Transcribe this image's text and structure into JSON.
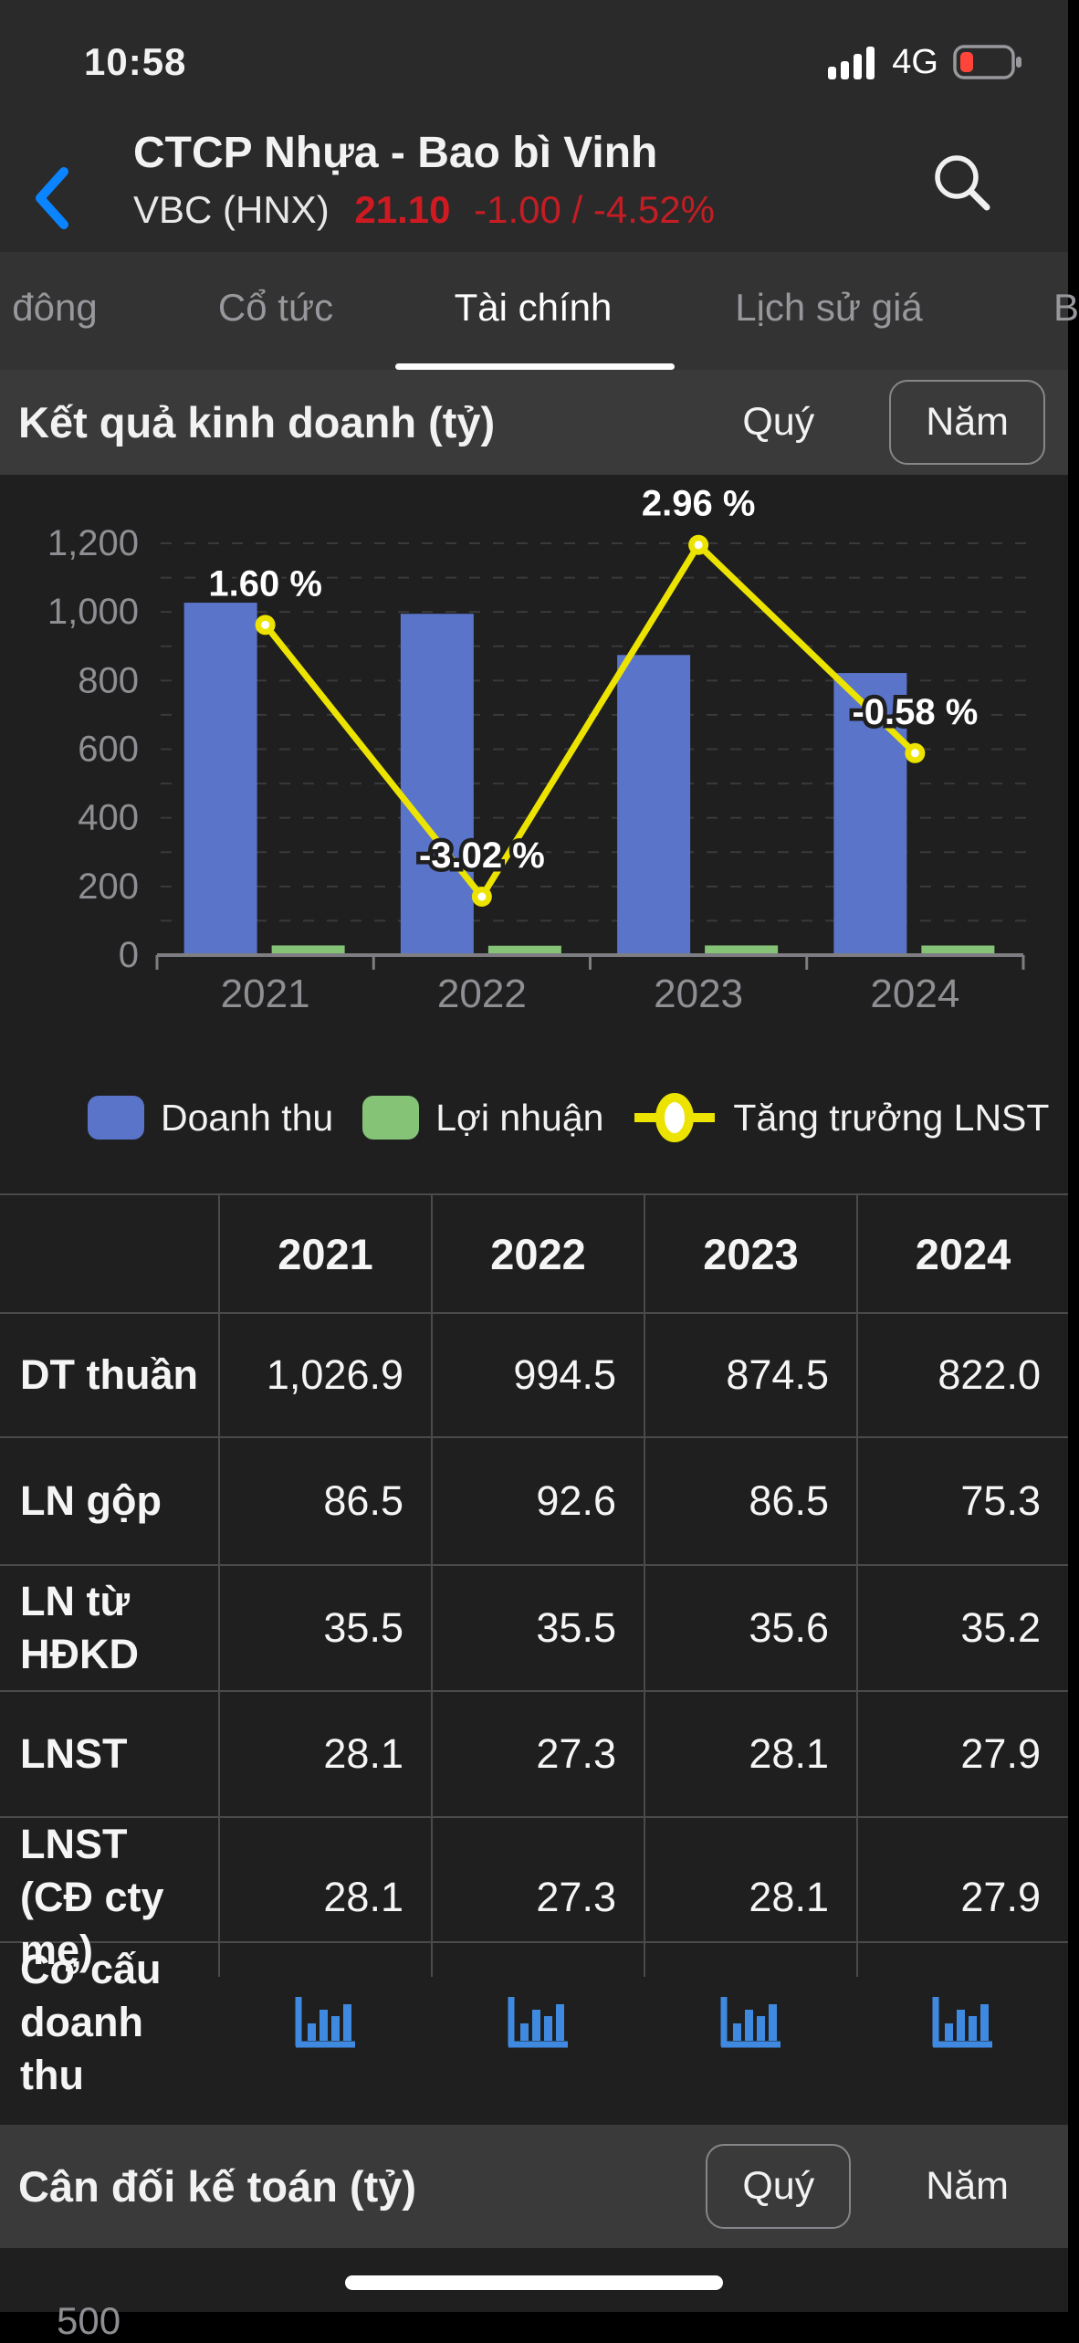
{
  "status_bar": {
    "time": "10:58",
    "network": "4G",
    "battery_level_color": "#ff453a"
  },
  "header": {
    "title": "CTCP Nhựa - Bao bì Vinh",
    "ticker": "VBC (HNX)",
    "price": "21.10",
    "change": "-1.00 / -4.52%",
    "price_color": "#d01a22"
  },
  "tab_bar": {
    "tabs": [
      {
        "label": "đông",
        "active": false
      },
      {
        "label": "Cổ tức",
        "active": false
      },
      {
        "label": "Tài chính",
        "active": true
      },
      {
        "label": "Lịch sử giá",
        "active": false
      },
      {
        "label": "B",
        "active": false
      }
    ]
  },
  "sections": {
    "income": {
      "title": "Kết quả kinh doanh (tỷ)",
      "quarter_label": "Quý",
      "year_label": "Năm",
      "selected": "Năm"
    },
    "balance": {
      "title": "Cân đối kế toán (tỷ)",
      "quarter_label": "Quý",
      "year_label": "Năm",
      "selected": "Quý"
    }
  },
  "chart_data": {
    "type": "bar",
    "title": "Kết quả kinh doanh (tỷ)",
    "categories": [
      "2021",
      "2022",
      "2023",
      "2024"
    ],
    "series": [
      {
        "name": "Doanh thu",
        "type": "bar",
        "color": "#5a74ca",
        "values": [
          1026.9,
          994.5,
          874.5,
          822.0
        ]
      },
      {
        "name": "Lợi nhuận",
        "type": "bar",
        "color": "#85c377",
        "values": [
          28.1,
          27.3,
          28.1,
          27.9
        ]
      },
      {
        "name": "Tăng trưởng LNST",
        "type": "line",
        "color": "#ece400",
        "unit": "%",
        "values": [
          1.6,
          -3.02,
          2.96,
          -0.58
        ],
        "point_labels": [
          "1.60 %",
          "-3.02 %",
          "2.96 %",
          "-0.58 %"
        ]
      }
    ],
    "y_axis": {
      "min": 0,
      "max": 1200,
      "label_step": 200,
      "grid_step": 100,
      "tick_labels": [
        "0",
        "200",
        "400",
        "600",
        "800",
        "1,000",
        "1,200"
      ]
    },
    "secondary_line_mapping": {
      "zero_at_primary_unit": 688,
      "primary_units_per_pct": 171.4
    },
    "grid": "dashed",
    "legend_position": "bottom"
  },
  "table": {
    "columns": [
      "",
      "2021",
      "2022",
      "2023",
      "2024"
    ],
    "rows": [
      {
        "label": "DT thuần",
        "values": [
          "1,026.9",
          "994.5",
          "874.5",
          "822.0"
        ]
      },
      {
        "label": "LN gộp",
        "values": [
          "86.5",
          "92.6",
          "86.5",
          "75.3"
        ]
      },
      {
        "label": "LN từ HĐKD",
        "values": [
          "35.5",
          "35.5",
          "35.6",
          "35.2"
        ]
      },
      {
        "label": "LNST",
        "values": [
          "28.1",
          "27.3",
          "28.1",
          "27.9"
        ]
      },
      {
        "label": "LNST (CĐ cty mẹ)",
        "values": [
          "28.1",
          "27.3",
          "28.1",
          "27.9"
        ]
      },
      {
        "label": "Cơ cấu doanh thu",
        "type": "chart-icons",
        "icon": "bar-chart-icon"
      }
    ]
  },
  "bottom": {
    "partial_axis_label": "500"
  },
  "colors": {
    "background": "#1f1f1f",
    "chrome": "#2a2a2a",
    "tabs_bg": "#333333",
    "band_bg": "#3a3a3a",
    "table_border": "#4a4a4a",
    "muted_text": "#8e8e93",
    "accent_blue": "#0a84ff",
    "bar_blue": "#5a74ca",
    "bar_green": "#85c377",
    "line_yellow": "#ece400",
    "red": "#d01a22",
    "icon_blue": "#3f8ae0"
  }
}
